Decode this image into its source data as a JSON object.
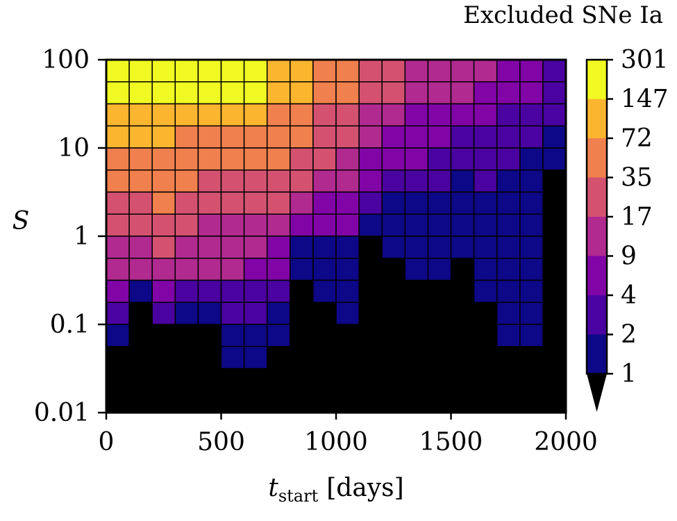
{
  "chart_data": {
    "type": "heatmap",
    "title": "",
    "xlabel": "t",
    "xlabel_subscript": "start",
    "xlabel_unit": "[days]",
    "ylabel": "S",
    "xlim": [
      0,
      2000
    ],
    "ylim": [
      0.01,
      100
    ],
    "yscale": "log",
    "x_ticks": [
      0,
      500,
      1000,
      1500,
      2000
    ],
    "x_tick_labels": [
      "0",
      "500",
      "1000",
      "1500",
      "2000"
    ],
    "y_ticks": [
      0.01,
      0.1,
      1,
      10,
      100
    ],
    "y_tick_labels": [
      "0.01",
      "0.1",
      "1",
      "10",
      "100"
    ],
    "x_bin_edges": [
      0,
      100,
      200,
      300,
      400,
      500,
      600,
      700,
      800,
      900,
      1000,
      1100,
      1200,
      1300,
      1400,
      1500,
      1600,
      1700,
      1800,
      1900,
      2000
    ],
    "y_bins_per_decade": 4,
    "colorbar": {
      "title": "Excluded SNe Ia",
      "tick_labels": [
        "1",
        "2",
        "4",
        "9",
        "17",
        "35",
        "72",
        "147",
        "301"
      ],
      "colors": [
        "#0d0887",
        "#4a02a0",
        "#8104a7",
        "#b02a8f",
        "#d45270",
        "#f0804d",
        "#fcb52f",
        "#f0f921"
      ],
      "under_color": "#000000",
      "extend": "min"
    },
    "grid": false,
    "level_legend": "Each cell value is a color-bin index 0-7 (bin i spans tick i to tick i+1 of the colorbar); -1 means below 1 (black).",
    "columns": [
      [
        7,
        7,
        6,
        6,
        5,
        5,
        4,
        4,
        3,
        3,
        2,
        1,
        0,
        -1,
        -1,
        -1
      ],
      [
        7,
        7,
        6,
        6,
        5,
        5,
        4,
        4,
        3,
        3,
        0,
        -1,
        -1,
        -1,
        -1,
        -1
      ],
      [
        7,
        7,
        6,
        6,
        5,
        5,
        5,
        4,
        4,
        3,
        2,
        1,
        -1,
        -1,
        -1,
        -1
      ],
      [
        7,
        7,
        6,
        5,
        5,
        5,
        4,
        4,
        3,
        3,
        1,
        0,
        -1,
        -1,
        -1,
        -1
      ],
      [
        7,
        7,
        6,
        5,
        5,
        4,
        4,
        3,
        3,
        3,
        1,
        0,
        -1,
        -1,
        -1,
        -1
      ],
      [
        7,
        7,
        6,
        5,
        5,
        4,
        4,
        3,
        3,
        3,
        1,
        1,
        0,
        0,
        -1,
        -1
      ],
      [
        7,
        7,
        6,
        5,
        5,
        4,
        4,
        3,
        3,
        2,
        1,
        1,
        0,
        0,
        -1,
        -1
      ],
      [
        6,
        6,
        5,
        5,
        5,
        4,
        4,
        3,
        2,
        2,
        1,
        0,
        0,
        -1,
        -1,
        -1
      ],
      [
        6,
        6,
        5,
        5,
        4,
        4,
        3,
        2,
        0,
        0,
        -1,
        -1,
        -1,
        -1,
        -1,
        -1
      ],
      [
        5,
        5,
        4,
        4,
        4,
        3,
        2,
        2,
        0,
        0,
        0,
        -1,
        -1,
        -1,
        -1,
        -1
      ],
      [
        5,
        5,
        4,
        4,
        3,
        3,
        2,
        2,
        0,
        0,
        0,
        0,
        -1,
        -1,
        -1,
        -1
      ],
      [
        4,
        4,
        3,
        3,
        2,
        2,
        1,
        0,
        -1,
        -1,
        -1,
        -1,
        -1,
        -1,
        -1,
        -1
      ],
      [
        4,
        4,
        3,
        2,
        2,
        1,
        0,
        0,
        0,
        -1,
        -1,
        -1,
        -1,
        -1,
        -1,
        -1
      ],
      [
        3,
        3,
        2,
        2,
        2,
        1,
        0,
        0,
        0,
        0,
        -1,
        -1,
        -1,
        -1,
        -1,
        -1
      ],
      [
        3,
        3,
        2,
        2,
        1,
        1,
        0,
        0,
        0,
        0,
        -1,
        -1,
        -1,
        -1,
        -1,
        -1
      ],
      [
        3,
        3,
        2,
        1,
        1,
        0,
        0,
        0,
        0,
        -1,
        -1,
        -1,
        -1,
        -1,
        -1,
        -1
      ],
      [
        3,
        2,
        2,
        1,
        1,
        1,
        0,
        0,
        0,
        0,
        0,
        -1,
        -1,
        -1,
        -1,
        -1
      ],
      [
        2,
        2,
        1,
        1,
        1,
        0,
        0,
        0,
        0,
        0,
        0,
        0,
        0,
        -1,
        -1,
        -1
      ],
      [
        2,
        2,
        1,
        1,
        0,
        0,
        0,
        0,
        0,
        0,
        0,
        0,
        0,
        -1,
        -1,
        -1
      ],
      [
        1,
        1,
        1,
        0,
        0,
        -1,
        -1,
        -1,
        -1,
        -1,
        -1,
        -1,
        -1,
        -1,
        -1,
        -1
      ]
    ]
  }
}
